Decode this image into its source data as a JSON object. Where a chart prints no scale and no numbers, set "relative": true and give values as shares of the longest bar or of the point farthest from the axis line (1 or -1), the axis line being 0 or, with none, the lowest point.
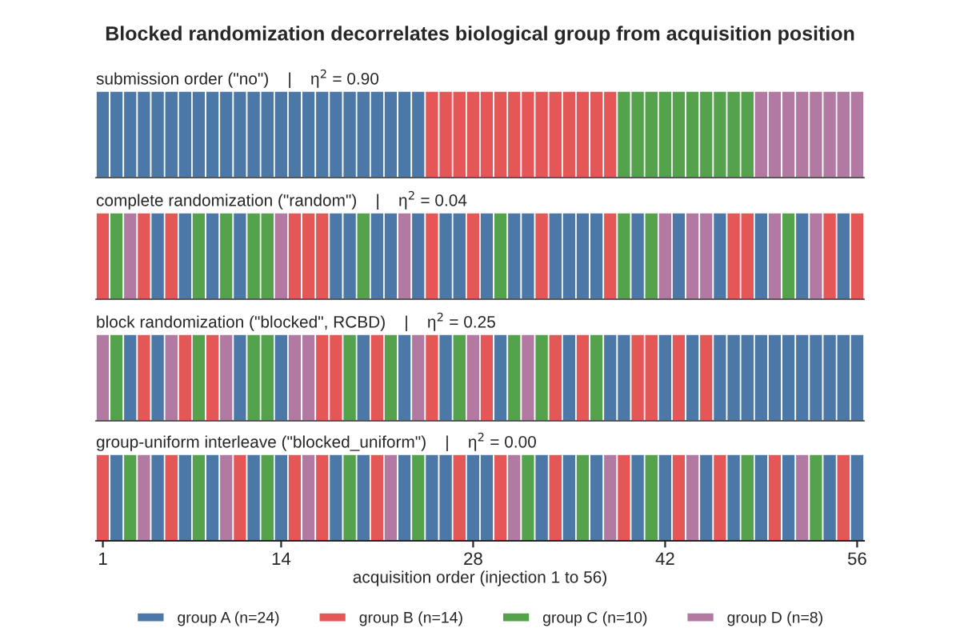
{
  "chart_data": [
    {
      "type": "bar",
      "relative": true,
      "title": "Blocked randomization decorrelates biological group from acquisition position",
      "subtitle": "submission order (\"no\")    |    η$^{2}$ = 0.90",
      "xlim": [
        0.5,
        56.5
      ],
      "tick_labels": false,
      "legend": "bottom",
      "x": [
        1,
        2,
        3,
        4,
        5,
        6,
        7,
        8,
        9,
        10,
        11,
        12,
        13,
        14,
        15,
        16,
        17,
        18,
        19,
        20,
        21,
        22,
        23,
        24,
        25,
        26,
        27,
        28,
        29,
        30,
        31,
        32,
        33,
        34,
        35,
        36,
        37,
        38,
        39,
        40,
        41,
        42,
        43,
        44,
        45,
        46,
        47,
        48,
        49,
        50,
        51,
        52,
        53,
        54,
        55,
        56
      ],
      "series": [
        {
          "name": "group A (n=24)",
          "color": "#4c78a8",
          "values": [
            1,
            1,
            1,
            1,
            1,
            1,
            1,
            1,
            1,
            1,
            1,
            1,
            1,
            1,
            1,
            1,
            1,
            1,
            1,
            1,
            1,
            1,
            1,
            1,
            null,
            null,
            null,
            null,
            null,
            null,
            null,
            null,
            null,
            null,
            null,
            null,
            null,
            null,
            null,
            null,
            null,
            null,
            null,
            null,
            null,
            null,
            null,
            null,
            null,
            null,
            null,
            null,
            null,
            null,
            null,
            null
          ]
        },
        {
          "name": "group B (n=14)",
          "color": "#e45756",
          "values": [
            null,
            null,
            null,
            null,
            null,
            null,
            null,
            null,
            null,
            null,
            null,
            null,
            null,
            null,
            null,
            null,
            null,
            null,
            null,
            null,
            null,
            null,
            null,
            null,
            1,
            1,
            1,
            1,
            1,
            1,
            1,
            1,
            1,
            1,
            1,
            1,
            1,
            1,
            null,
            null,
            null,
            null,
            null,
            null,
            null,
            null,
            null,
            null,
            null,
            null,
            null,
            null,
            null,
            null,
            null,
            null
          ]
        },
        {
          "name": "group C (n=10)",
          "color": "#54a24b",
          "values": [
            null,
            null,
            null,
            null,
            null,
            null,
            null,
            null,
            null,
            null,
            null,
            null,
            null,
            null,
            null,
            null,
            null,
            null,
            null,
            null,
            null,
            null,
            null,
            null,
            null,
            null,
            null,
            null,
            null,
            null,
            null,
            null,
            null,
            null,
            null,
            null,
            null,
            null,
            1,
            1,
            1,
            1,
            1,
            1,
            1,
            1,
            1,
            1,
            null,
            null,
            null,
            null,
            null,
            null,
            null,
            null
          ]
        },
        {
          "name": "group D (n=8)",
          "color": "#b279a2",
          "values": [
            null,
            null,
            null,
            null,
            null,
            null,
            null,
            null,
            null,
            null,
            null,
            null,
            null,
            null,
            null,
            null,
            null,
            null,
            null,
            null,
            null,
            null,
            null,
            null,
            null,
            null,
            null,
            null,
            null,
            null,
            null,
            null,
            null,
            null,
            null,
            null,
            null,
            null,
            null,
            null,
            null,
            null,
            null,
            null,
            null,
            null,
            null,
            null,
            1,
            1,
            1,
            1,
            1,
            1,
            1,
            1
          ]
        }
      ]
    },
    {
      "type": "bar",
      "relative": true,
      "subtitle": "complete randomization (\"random\")    |    η$^{2}$ = 0.04",
      "xlim": [
        0.5,
        56.5
      ],
      "tick_labels": false,
      "x": [
        1,
        2,
        3,
        4,
        5,
        6,
        7,
        8,
        9,
        10,
        11,
        12,
        13,
        14,
        15,
        16,
        17,
        18,
        19,
        20,
        21,
        22,
        23,
        24,
        25,
        26,
        27,
        28,
        29,
        30,
        31,
        32,
        33,
        34,
        35,
        36,
        37,
        38,
        39,
        40,
        41,
        42,
        43,
        44,
        45,
        46,
        47,
        48,
        49,
        50,
        51,
        52,
        53,
        54,
        55,
        56
      ],
      "values": [
        1,
        1,
        1,
        1,
        1,
        1,
        1,
        1,
        1,
        1,
        1,
        1,
        1,
        1,
        1,
        1,
        1,
        1,
        1,
        1,
        1,
        1,
        1,
        1,
        1,
        1,
        1,
        1,
        1,
        1,
        1,
        1,
        1,
        1,
        1,
        1,
        1,
        1,
        1,
        1,
        1,
        1,
        1,
        1,
        1,
        1,
        1,
        1,
        1,
        1,
        1,
        1,
        1,
        1,
        1,
        1
      ],
      "colors": [
        "#e45756",
        "#54a24b",
        "#b279a2",
        "#e45756",
        "#4c78a8",
        "#e45756",
        "#4c78a8",
        "#54a24b",
        "#4c78a8",
        "#54a24b",
        "#4c78a8",
        "#54a24b",
        "#54a24b",
        "#b279a2",
        "#e45756",
        "#e45756",
        "#e45756",
        "#4c78a8",
        "#4c78a8",
        "#54a24b",
        "#4c78a8",
        "#4c78a8",
        "#b279a2",
        "#4c78a8",
        "#e45756",
        "#4c78a8",
        "#4c78a8",
        "#e45756",
        "#4c78a8",
        "#54a24b",
        "#4c78a8",
        "#4c78a8",
        "#e45756",
        "#4c78a8",
        "#4c78a8",
        "#4c78a8",
        "#4c78a8",
        "#e45756",
        "#54a24b",
        "#4c78a8",
        "#54a24b",
        "#b279a2",
        "#4c78a8",
        "#b279a2",
        "#b279a2",
        "#4c78a8",
        "#e45756",
        "#e45756",
        "#4c78a8",
        "#b279a2",
        "#54a24b",
        "#4c78a8",
        "#b279a2",
        "#e45756",
        "#4c78a8",
        "#e45756"
      ]
    },
    {
      "type": "bar",
      "relative": true,
      "subtitle": "block randomization (\"blocked\", RCBD)    |    η$^{2}$ = 0.25",
      "xlim": [
        0.5,
        56.5
      ],
      "tick_labels": false,
      "x": [
        1,
        2,
        3,
        4,
        5,
        6,
        7,
        8,
        9,
        10,
        11,
        12,
        13,
        14,
        15,
        16,
        17,
        18,
        19,
        20,
        21,
        22,
        23,
        24,
        25,
        26,
        27,
        28,
        29,
        30,
        31,
        32,
        33,
        34,
        35,
        36,
        37,
        38,
        39,
        40,
        41,
        42,
        43,
        44,
        45,
        46,
        47,
        48,
        49,
        50,
        51,
        52,
        53,
        54,
        55,
        56
      ],
      "values": [
        1,
        1,
        1,
        1,
        1,
        1,
        1,
        1,
        1,
        1,
        1,
        1,
        1,
        1,
        1,
        1,
        1,
        1,
        1,
        1,
        1,
        1,
        1,
        1,
        1,
        1,
        1,
        1,
        1,
        1,
        1,
        1,
        1,
        1,
        1,
        1,
        1,
        1,
        1,
        1,
        1,
        1,
        1,
        1,
        1,
        1,
        1,
        1,
        1,
        1,
        1,
        1,
        1,
        1,
        1,
        1
      ],
      "colors": [
        "#b279a2",
        "#54a24b",
        "#4c78a8",
        "#e45756",
        "#4c78a8",
        "#b279a2",
        "#e45756",
        "#54a24b",
        "#e45756",
        "#b279a2",
        "#4c78a8",
        "#54a24b",
        "#54a24b",
        "#4c78a8",
        "#b279a2",
        "#b279a2",
        "#e45756",
        "#e45756",
        "#54a24b",
        "#4c78a8",
        "#e45756",
        "#54a24b",
        "#4c78a8",
        "#b279a2",
        "#e45756",
        "#4c78a8",
        "#54a24b",
        "#b279a2",
        "#e45756",
        "#4c78a8",
        "#54a24b",
        "#b279a2",
        "#54a24b",
        "#e45756",
        "#4c78a8",
        "#e45756",
        "#54a24b",
        "#4c78a8",
        "#4c78a8",
        "#e45756",
        "#e45756",
        "#4c78a8",
        "#e45756",
        "#4c78a8",
        "#e45756",
        "#4c78a8",
        "#4c78a8",
        "#4c78a8",
        "#4c78a8",
        "#4c78a8",
        "#4c78a8",
        "#4c78a8",
        "#4c78a8",
        "#4c78a8",
        "#4c78a8",
        "#4c78a8"
      ]
    },
    {
      "type": "bar",
      "relative": true,
      "subtitle": "group-uniform interleave (\"blocked_uniform\")    |    η$^{2}$ = 0.00",
      "xlabel": "acquisition order (injection 1 to 56)",
      "xlim": [
        0.5,
        56.5
      ],
      "xticks": [
        1,
        14,
        28,
        42,
        56
      ],
      "tick_labels": "x",
      "x": [
        1,
        2,
        3,
        4,
        5,
        6,
        7,
        8,
        9,
        10,
        11,
        12,
        13,
        14,
        15,
        16,
        17,
        18,
        19,
        20,
        21,
        22,
        23,
        24,
        25,
        26,
        27,
        28,
        29,
        30,
        31,
        32,
        33,
        34,
        35,
        36,
        37,
        38,
        39,
        40,
        41,
        42,
        43,
        44,
        45,
        46,
        47,
        48,
        49,
        50,
        51,
        52,
        53,
        54,
        55,
        56
      ],
      "values": [
        1,
        1,
        1,
        1,
        1,
        1,
        1,
        1,
        1,
        1,
        1,
        1,
        1,
        1,
        1,
        1,
        1,
        1,
        1,
        1,
        1,
        1,
        1,
        1,
        1,
        1,
        1,
        1,
        1,
        1,
        1,
        1,
        1,
        1,
        1,
        1,
        1,
        1,
        1,
        1,
        1,
        1,
        1,
        1,
        1,
        1,
        1,
        1,
        1,
        1,
        1,
        1,
        1,
        1,
        1,
        1
      ],
      "colors": [
        "#e45756",
        "#4c78a8",
        "#54a24b",
        "#b279a2",
        "#4c78a8",
        "#e45756",
        "#4c78a8",
        "#54a24b",
        "#4c78a8",
        "#b279a2",
        "#e45756",
        "#4c78a8",
        "#54a24b",
        "#4c78a8",
        "#e45756",
        "#b279a2",
        "#e45756",
        "#4c78a8",
        "#54a24b",
        "#4c78a8",
        "#e45756",
        "#b279a2",
        "#4c78a8",
        "#54a24b",
        "#4c78a8",
        "#4c78a8",
        "#e45756",
        "#4c78a8",
        "#4c78a8",
        "#e45756",
        "#b279a2",
        "#54a24b",
        "#4c78a8",
        "#e45756",
        "#4c78a8",
        "#54a24b",
        "#4c78a8",
        "#b279a2",
        "#e45756",
        "#4c78a8",
        "#54a24b",
        "#4c78a8",
        "#e45756",
        "#b279a2",
        "#4c78a8",
        "#e45756",
        "#4c78a8",
        "#54a24b",
        "#4c78a8",
        "#e45756",
        "#4c78a8",
        "#b279a2",
        "#54a24b",
        "#4c78a8",
        "#e45756",
        "#4c78a8"
      ]
    }
  ]
}
